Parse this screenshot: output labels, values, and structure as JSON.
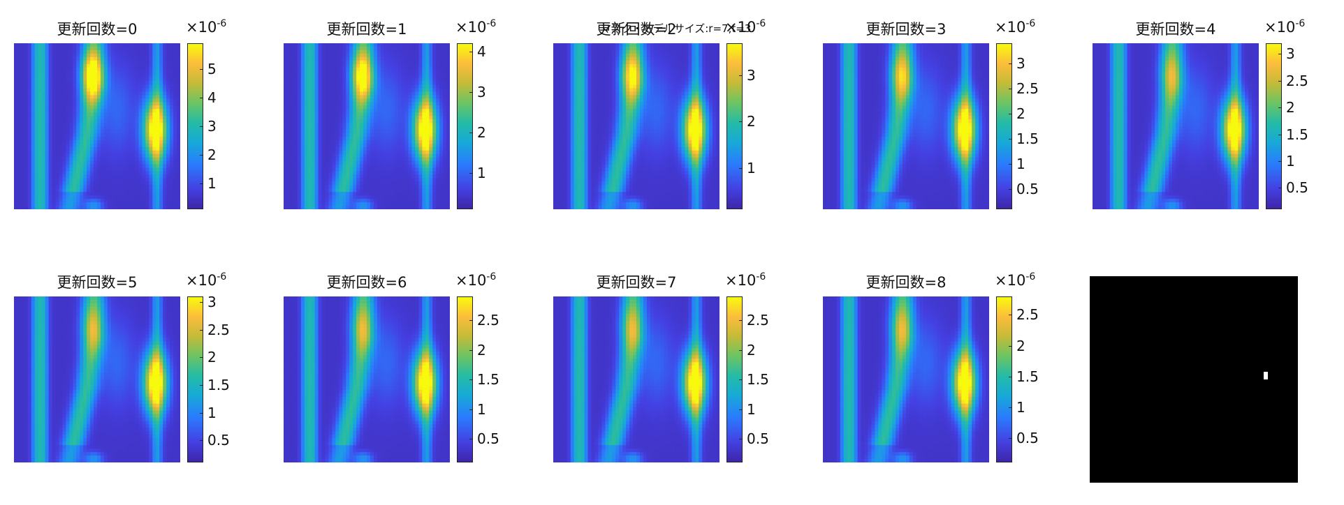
{
  "figure": {
    "overlay_title": "マスク・モデルサイズ:r=7,t=3"
  },
  "chart_data": [
    {
      "type": "heatmap",
      "title": "更新回数=0",
      "colorbar": {
        "scale_label": "×10",
        "scale_exponent": "-6",
        "ticks": [
          "1",
          "2",
          "3",
          "4",
          "5"
        ],
        "range": [
          0.1,
          5.9
        ]
      },
      "peak": 5.8
    },
    {
      "type": "heatmap",
      "title": "更新回数=1",
      "colorbar": {
        "scale_label": "×10",
        "scale_exponent": "-6",
        "ticks": [
          "1",
          "2",
          "3",
          "4"
        ],
        "range": [
          0.1,
          4.2
        ]
      },
      "peak": 4.1
    },
    {
      "type": "heatmap",
      "title": "更新回数=2",
      "colorbar": {
        "scale_label": "×10",
        "scale_exponent": "-6",
        "ticks": [
          "1",
          "2",
          "3"
        ],
        "range": [
          0.1,
          3.7
        ]
      },
      "peak": 3.6
    },
    {
      "type": "heatmap",
      "title": "更新回数=3",
      "colorbar": {
        "scale_label": "×10",
        "scale_exponent": "-6",
        "ticks": [
          "0.5",
          "1",
          "1.5",
          "2",
          "2.5",
          "3"
        ],
        "range": [
          0.1,
          3.4
        ]
      },
      "peak": 3.3
    },
    {
      "type": "heatmap",
      "title": "更新回数=4",
      "colorbar": {
        "scale_label": "×10",
        "scale_exponent": "-6",
        "ticks": [
          "0.5",
          "1",
          "1.5",
          "2",
          "2.5",
          "3"
        ],
        "range": [
          0.1,
          3.2
        ]
      },
      "peak": 3.1
    },
    {
      "type": "heatmap",
      "title": "更新回数=5",
      "colorbar": {
        "scale_label": "×10",
        "scale_exponent": "-6",
        "ticks": [
          "0.5",
          "1",
          "1.5",
          "2",
          "2.5",
          "3"
        ],
        "range": [
          0.1,
          3.1
        ]
      },
      "peak": 3.0
    },
    {
      "type": "heatmap",
      "title": "更新回数=6",
      "colorbar": {
        "scale_label": "×10",
        "scale_exponent": "-6",
        "ticks": [
          "0.5",
          "1",
          "1.5",
          "2",
          "2.5"
        ],
        "range": [
          0.1,
          2.9
        ]
      },
      "peak": 2.9
    },
    {
      "type": "heatmap",
      "title": "更新回数=7",
      "colorbar": {
        "scale_label": "×10",
        "scale_exponent": "-6",
        "ticks": [
          "0.5",
          "1",
          "1.5",
          "2",
          "2.5"
        ],
        "range": [
          0.1,
          2.9
        ]
      },
      "peak": 2.8
    },
    {
      "type": "heatmap",
      "title": "更新回数=8",
      "colorbar": {
        "scale_label": "×10",
        "scale_exponent": "-6",
        "ticks": [
          "0.5",
          "1",
          "1.5",
          "2",
          "2.5"
        ],
        "range": [
          0.1,
          2.8
        ]
      },
      "peak": 2.8
    }
  ]
}
